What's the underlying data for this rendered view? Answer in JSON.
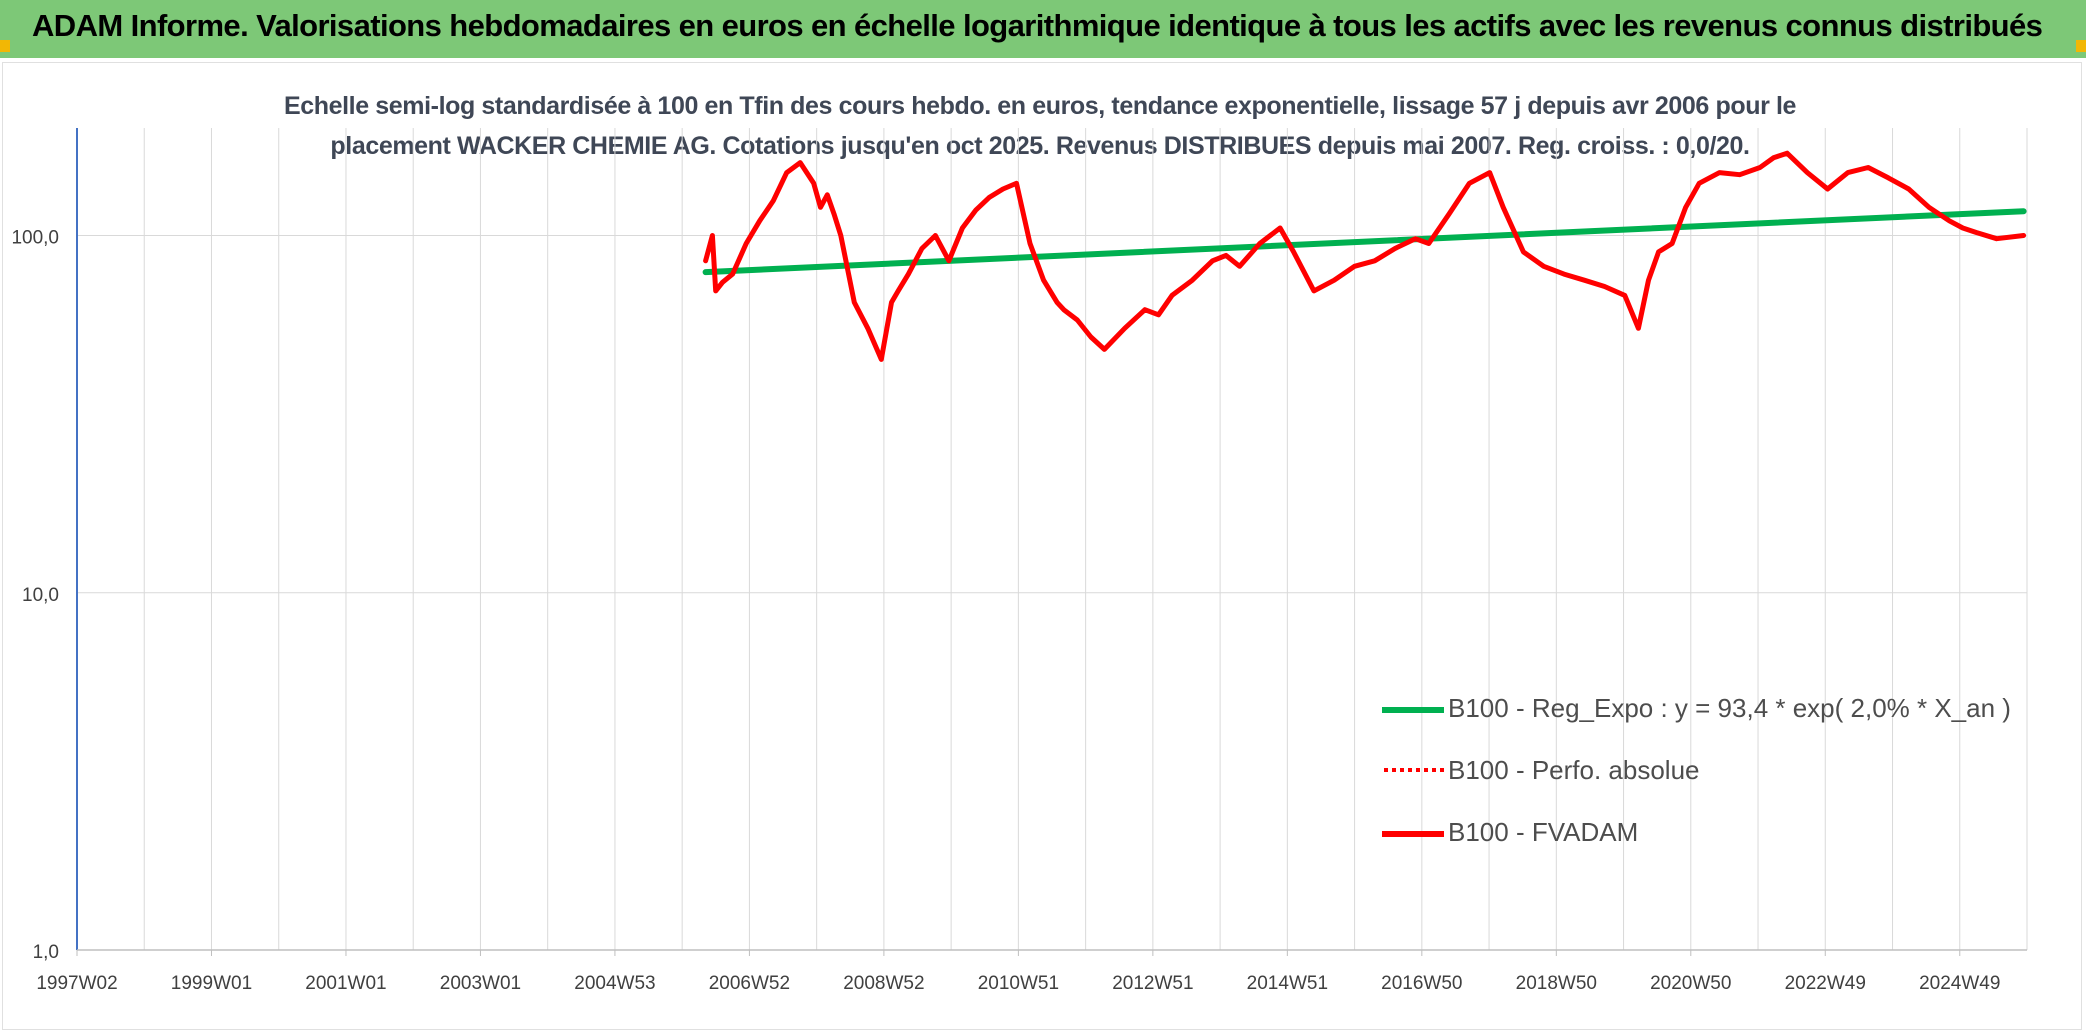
{
  "header": {
    "title": "ADAM Informe. Valorisations hebdomadaires en euros en échelle logarithmique identique à tous les actifs avec les revenus connus distribués"
  },
  "colors": {
    "title_bar": "#7dc877",
    "corner_accent": "#f2b705",
    "regression": "#00b050",
    "fvadam": "#ff0000",
    "perfo": "#ff0000",
    "grid": "#d9d9d9"
  },
  "chart_data": {
    "type": "line",
    "title_line1": "Echelle semi-log standardisée à 100 en Tfin des cours hebdo. en euros, tendance exponentielle, lissage 57 j depuis avr 2006 pour le",
    "title_line2": "placement WACKER CHEMIE AG. Cotations jusqu'en oct 2025. Revenus DISTRIBUES depuis mai 2007. Reg. croiss. : 0,0/20.",
    "y_scale": "log",
    "ylim": [
      1,
      200
    ],
    "y_ticks": [
      "1,0",
      "10,0",
      "100,0"
    ],
    "y_tick_values": [
      1,
      10,
      100
    ],
    "x_ticks": [
      "1997W02",
      "1999W01",
      "2001W01",
      "2003W01",
      "2004W53",
      "2006W52",
      "2008W52",
      "2010W51",
      "2012W51",
      "2014W51",
      "2016W50",
      "2018W50",
      "2020W50",
      "2022W49",
      "2024W49"
    ],
    "x_range_years": [
      1997.0,
      2025.85
    ],
    "grid": true,
    "legend_position": "bottom-right",
    "series": [
      {
        "name": "B100 - Reg_Expo : y = 93,4 * exp( 2,0% *  X_an )",
        "style": "solid",
        "x": [
          2006.3,
          2025.8
        ],
        "y": [
          79,
          117
        ]
      },
      {
        "name": "B100 - Perfo. absolue",
        "style": "dotted",
        "x": [],
        "y": []
      },
      {
        "name": "B100 - FVADAM",
        "style": "solid",
        "x": [
          2006.3,
          2006.4,
          2006.45,
          2006.55,
          2006.7,
          2006.9,
          2007.1,
          2007.3,
          2007.5,
          2007.7,
          2007.9,
          2008.0,
          2008.1,
          2008.2,
          2008.3,
          2008.5,
          2008.7,
          2008.9,
          2009.05,
          2009.15,
          2009.3,
          2009.5,
          2009.7,
          2009.9,
          2010.1,
          2010.3,
          2010.5,
          2010.7,
          2010.9,
          2011.1,
          2011.3,
          2011.5,
          2011.6,
          2011.8,
          2012.0,
          2012.2,
          2012.5,
          2012.8,
          2013.0,
          2013.2,
          2013.5,
          2013.8,
          2014.0,
          2014.2,
          2014.5,
          2014.8,
          2015.0,
          2015.3,
          2015.6,
          2015.9,
          2016.2,
          2016.5,
          2016.8,
          2017.0,
          2017.3,
          2017.6,
          2017.9,
          2018.1,
          2018.4,
          2018.7,
          2019.0,
          2019.3,
          2019.6,
          2019.9,
          2020.1,
          2020.25,
          2020.4,
          2020.6,
          2020.8,
          2021.0,
          2021.3,
          2021.6,
          2021.9,
          2022.1,
          2022.3,
          2022.6,
          2022.9,
          2023.2,
          2023.5,
          2023.8,
          2024.1,
          2024.4,
          2024.7,
          2024.9,
          2025.1,
          2025.4,
          2025.8
        ],
        "y": [
          85,
          100,
          70,
          74,
          78,
          95,
          110,
          125,
          150,
          160,
          140,
          120,
          130,
          115,
          100,
          65,
          55,
          45,
          65,
          70,
          78,
          92,
          100,
          85,
          105,
          118,
          128,
          135,
          140,
          95,
          75,
          65,
          62,
          58,
          52,
          48,
          55,
          62,
          60,
          68,
          75,
          85,
          88,
          82,
          95,
          105,
          90,
          70,
          75,
          82,
          85,
          92,
          98,
          95,
          115,
          140,
          150,
          120,
          90,
          82,
          78,
          75,
          72,
          68,
          55,
          75,
          90,
          95,
          120,
          140,
          150,
          148,
          155,
          165,
          170,
          150,
          135,
          150,
          155,
          145,
          135,
          120,
          110,
          105,
          102,
          98,
          100
        ]
      }
    ]
  }
}
